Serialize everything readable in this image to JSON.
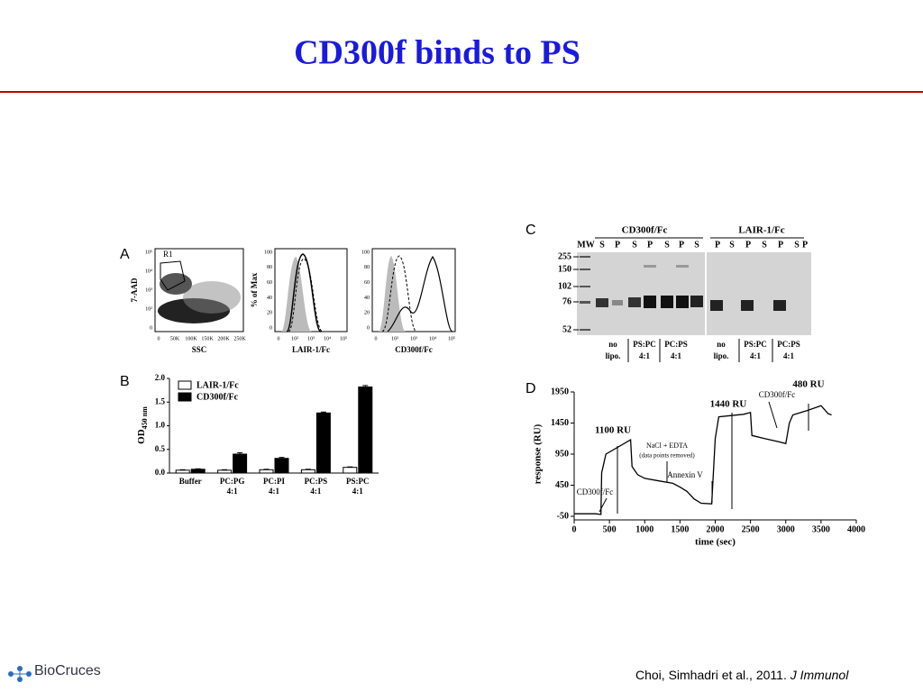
{
  "slide": {
    "title": "CD300f binds to PS",
    "citation": "Choi, Simhadri et al., 2011.",
    "journal": "J Immunol",
    "logo": "BioCruces"
  },
  "panel_a": {
    "label": "A",
    "gate": "R1",
    "plots": [
      {
        "ylabel": "7-AAD",
        "xlabel": "SSC",
        "xticks": [
          "0",
          "50K",
          "100K",
          "150K",
          "200K",
          "250K"
        ],
        "yticks": [
          "0",
          "10²",
          "10³",
          "10⁴",
          "10⁵"
        ]
      },
      {
        "ylabel": "% of Max",
        "xlabel": "LAIR-1/Fc",
        "xticks": [
          "0",
          "10²",
          "10³",
          "10⁴",
          "10⁵"
        ],
        "yticks": [
          "0",
          "20",
          "40",
          "60",
          "80",
          "100"
        ]
      },
      {
        "xlabel": "CD300f/Fc",
        "xticks": [
          "0",
          "10²",
          "10³",
          "10⁴",
          "10⁵"
        ],
        "yticks": [
          "0",
          "20",
          "40",
          "60",
          "80",
          "100"
        ]
      }
    ]
  },
  "panel_b": {
    "label": "B",
    "type": "bar",
    "ylabel": "OD",
    "ylabel_sub": "450 nm",
    "categories": [
      "Buffer",
      "PC:PG",
      "PC:PI",
      "PC:PS",
      "PS:PC"
    ],
    "ratios": [
      null,
      "4:1",
      "4:1",
      "4:1",
      "4:1"
    ],
    "ylim": [
      0,
      2.0
    ],
    "yticks": [
      {
        "value": 0,
        "label": "0.0"
      },
      0.5,
      {
        "value": 1,
        "label": "1.0"
      },
      1.5,
      {
        "value": 2,
        "label": "2.0"
      }
    ],
    "series": [
      {
        "name": "LAIR-1/Fc",
        "color": "#ffffff",
        "values": [
          0.06,
          0.06,
          0.07,
          0.07,
          0.12
        ],
        "errors": [
          0.01,
          0.01,
          0.01,
          0.01,
          0.01
        ]
      },
      {
        "name": "CD300f/Fc",
        "color": "#000000",
        "values": [
          0.08,
          0.4,
          0.31,
          1.27,
          1.82
        ],
        "errors": [
          0.01,
          0.03,
          0.02,
          0.02,
          0.03
        ]
      }
    ]
  },
  "panel_c": {
    "label": "C",
    "groups": [
      "CD300f/Fc",
      "LAIR-1/Fc"
    ],
    "lanes": [
      "MW",
      "S",
      "P",
      "S",
      "P",
      "S",
      "P",
      "S",
      "P",
      "S",
      "P",
      "S",
      "P",
      "S",
      "P"
    ],
    "markers": [
      "255",
      "150",
      "102",
      "76",
      "52"
    ],
    "conditions": [
      {
        "line1": "no",
        "line2": "lipo."
      },
      {
        "line1": "PS:PC",
        "line2": "4:1"
      },
      {
        "line1": "PC:PS",
        "line2": "4:1"
      },
      {
        "line1": "no",
        "line2": "lipo."
      },
      {
        "line1": "PS:PC",
        "line2": "4:1"
      },
      {
        "line1": "PC:PS",
        "line2": "4:1"
      }
    ]
  },
  "panel_d": {
    "label": "D",
    "type": "line",
    "xlabel": "time (sec)",
    "ylabel": "response (RU)",
    "xlim": [
      0,
      4000
    ],
    "ylim": [
      -50,
      1950
    ],
    "xticks": [
      0,
      500,
      1000,
      1500,
      2000,
      2500,
      3000,
      3500,
      4000
    ],
    "yticks": [
      -50,
      450,
      950,
      1450,
      1950
    ],
    "x": [
      0,
      300,
      380,
      390,
      450,
      800,
      820,
      900,
      1000,
      1200,
      1400,
      1500,
      1600,
      1700,
      1800,
      1950,
      2000,
      2050,
      2400,
      2500,
      2520,
      2700,
      2900,
      3000,
      3050,
      3100,
      3300,
      3500,
      3600,
      3650
    ],
    "y": [
      -10,
      -10,
      -20,
      650,
      950,
      1180,
      750,
      620,
      560,
      520,
      480,
      420,
      350,
      230,
      160,
      150,
      1200,
      1550,
      1590,
      1620,
      1250,
      1200,
      1150,
      1120,
      1450,
      1580,
      1650,
      1730,
      1600,
      1580
    ],
    "annotations": [
      "1100 RU",
      "1440 RU",
      "480 RU",
      "CD300f/Fc",
      "NaCl + EDTA",
      "(data points removed)",
      "Annexin V",
      "CD300f/Fc"
    ]
  }
}
